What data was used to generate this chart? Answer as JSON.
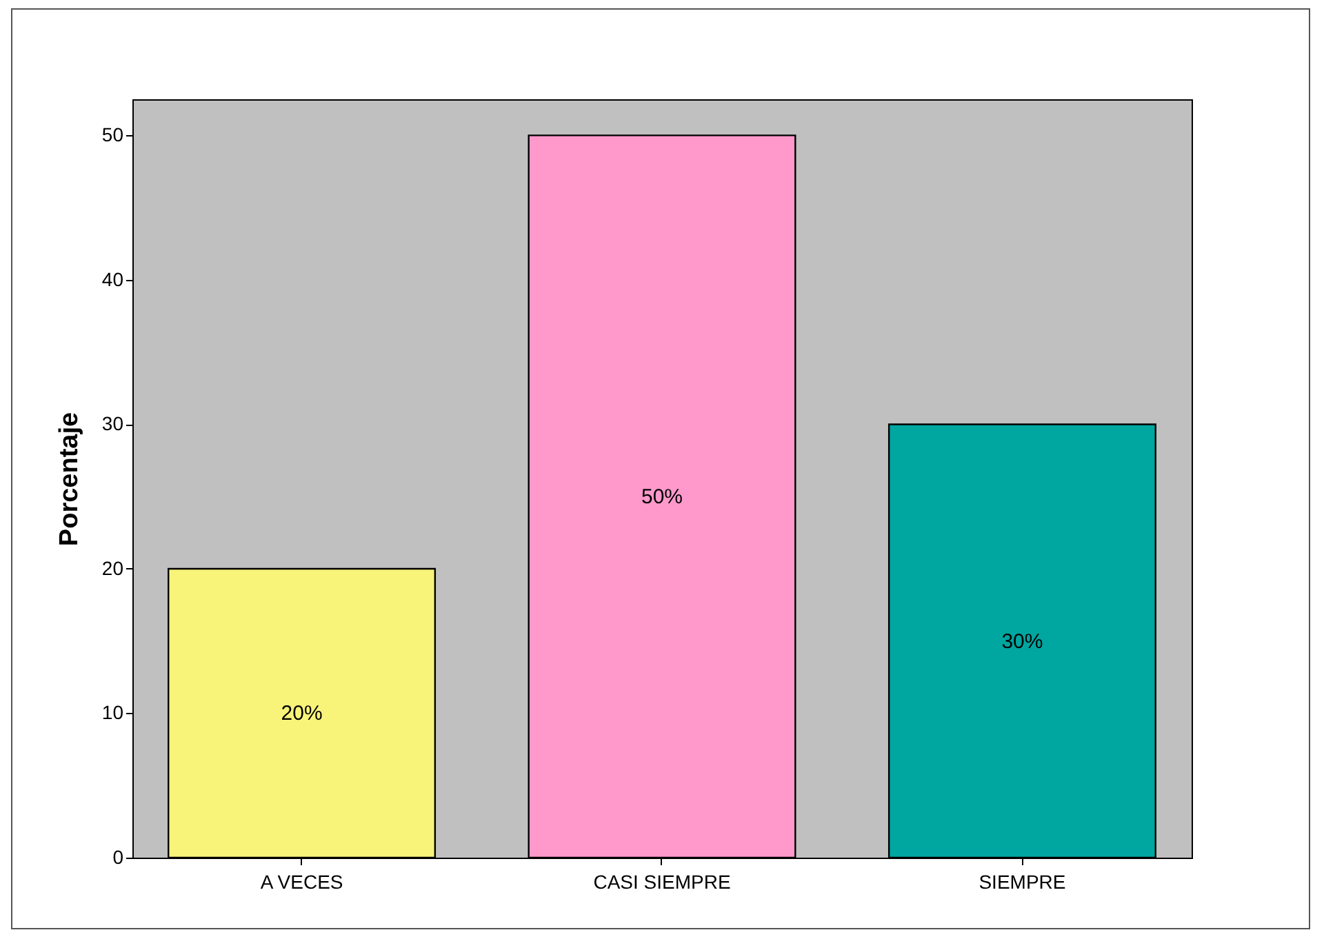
{
  "chart_data": {
    "type": "bar",
    "ylabel": "Porcentaje",
    "categories": [
      "A VECES",
      "CASI SIEMPRE",
      "SIEMPRE"
    ],
    "values": [
      20,
      50,
      30
    ],
    "colors": [
      "#f8f47a",
      "#ff99cc",
      "#00a6a0"
    ],
    "value_labels": [
      "20%",
      "50%",
      "30%"
    ],
    "ylim": [
      0,
      52.5
    ],
    "yticks": [
      0,
      10,
      20,
      30,
      40,
      50
    ],
    "grid": false
  }
}
